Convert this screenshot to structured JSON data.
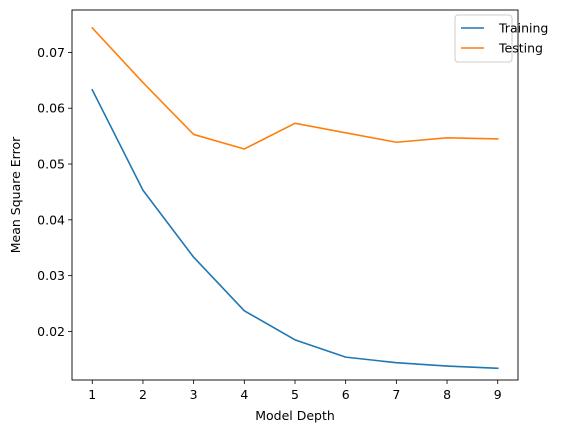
{
  "chart_data": {
    "type": "line",
    "title": "",
    "xlabel": "Model Depth",
    "ylabel": "Mean Square Error",
    "x": [
      1,
      2,
      3,
      4,
      5,
      6,
      7,
      8,
      9
    ],
    "xlim": [
      0.6,
      9.4
    ],
    "ylim": [
      0.0113,
      0.0776
    ],
    "xticks": [
      "1",
      "2",
      "3",
      "4",
      "5",
      "6",
      "7",
      "8",
      "9"
    ],
    "yticks": [
      "0.02",
      "0.03",
      "0.04",
      "0.05",
      "0.06",
      "0.07"
    ],
    "ytick_values": [
      0.02,
      0.03,
      0.04,
      0.05,
      0.06,
      0.07
    ],
    "grid": false,
    "legend_position": "top-right",
    "series": [
      {
        "name": "Training",
        "color": "#1f77b4",
        "values": [
          0.0633,
          0.0453,
          0.0333,
          0.0237,
          0.0185,
          0.0154,
          0.0144,
          0.0138,
          0.0134
        ]
      },
      {
        "name": "Testing",
        "color": "#ff7f0e",
        "values": [
          0.0744,
          0.0646,
          0.0553,
          0.0527,
          0.0573,
          0.0556,
          0.0539,
          0.0547,
          0.0545
        ]
      }
    ]
  }
}
